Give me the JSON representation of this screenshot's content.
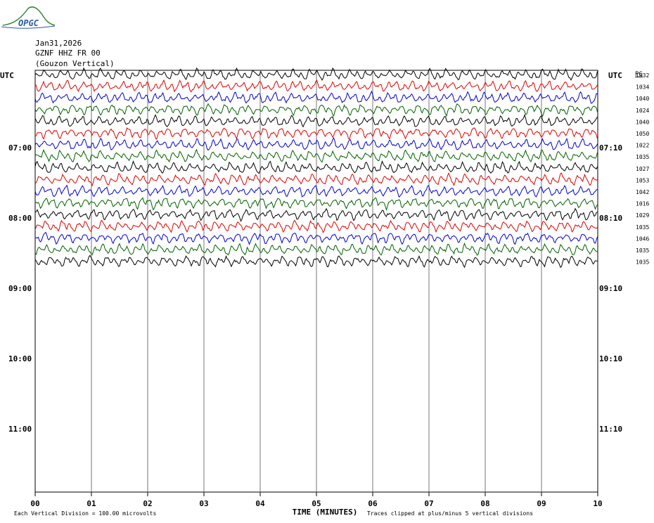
{
  "logo": {
    "text": "OPGC",
    "color_green": "#2f8a3a",
    "color_blue": "#2a5aa0"
  },
  "header": {
    "date": "Jan31,2026",
    "station": "GZNF HHZ FR 00",
    "location": "(Gouzon Vertical)"
  },
  "chart_data": {
    "type": "line",
    "title": "",
    "xlabel": "TIME (MINUTES)",
    "ylabel": "",
    "left_axis_label": "UTC",
    "right_axis_label": "UTC",
    "pg_label": "PG",
    "x_ticks": [
      "00",
      "01",
      "02",
      "03",
      "04",
      "05",
      "06",
      "07",
      "08",
      "09",
      "10"
    ],
    "xlim": [
      0,
      10
    ],
    "left_hour_labels": [
      "07:00",
      "08:00",
      "09:00",
      "10:00",
      "11:00"
    ],
    "right_hour_labels": [
      "07:10",
      "08:10",
      "09:10",
      "10:10",
      "11:10"
    ],
    "trace_colors": [
      "#000000",
      "#e00000",
      "#0000d0",
      "#006000"
    ],
    "trace_values": [
      "1032",
      "1034",
      "1040",
      "1024",
      "1040",
      "1050",
      "1022",
      "1035",
      "1027",
      "1053",
      "1042",
      "1016",
      "1029",
      "1035",
      "1046",
      "1035",
      "1035"
    ],
    "footer_scale": "Each Vertical Division =  100.00 microvolts",
    "footer_clip": "Traces clipped at plus/minus 5 vertical divisions",
    "grid": true
  }
}
